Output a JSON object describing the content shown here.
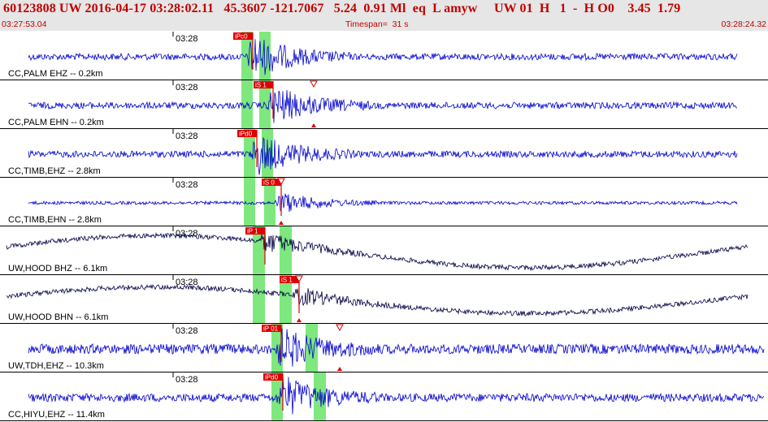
{
  "header": {
    "title": "60123808 UW 2016-04-17 03:28:02.11   45.3607 -121.7067   5.24  0.91 Ml  eq  L amyw     UW 01  H   1  -  H O0    3.45  1.79",
    "start_time": "03:27:53.04",
    "timespan": "Timespan=  31 s",
    "end_time": "03:28:24.32"
  },
  "colors": {
    "header_bg": "#e6e6e6",
    "header_text": "#c00000",
    "trace_blue": "#0000cc",
    "trace_dark": "#000044",
    "pick_red": "#dd0000",
    "window_green": "#7ee87e"
  },
  "panels": [
    {
      "time_tick": "03:28",
      "label": "CC,PALM EHZ -- 0.2km",
      "phase": "iPc0",
      "trace": "blue",
      "amp": "medium"
    },
    {
      "time_tick": "03:28",
      "label": "CC,PALM EHN -- 0.2km",
      "phase": "iS 1",
      "trace": "blue",
      "amp": "medium"
    },
    {
      "time_tick": "03:28",
      "label": "CC,TIMB,EHZ -- 2.8km",
      "phase": "iPd0",
      "trace": "blue",
      "amp": "medium"
    },
    {
      "time_tick": "03:28",
      "label": "CC,TIMB,EHN -- 2.8km",
      "phase": "iS 0",
      "trace": "blue",
      "amp": "small"
    },
    {
      "time_tick": "03:28",
      "label": "UW,HOOD BHZ -- 6.1km",
      "phase": "iP 1",
      "trace": "dark",
      "amp": "long-period"
    },
    {
      "time_tick": "03:28",
      "label": "UW,HOOD BHN -- 6.1km",
      "phase": "iS 1",
      "trace": "dark",
      "amp": "long-period"
    },
    {
      "time_tick": "03:28",
      "label": "UW,TDH,EHZ -- 10.3km",
      "phase": "iP 01",
      "trace": "blue",
      "amp": "noisy"
    },
    {
      "time_tick": "03:28",
      "label": "CC,HIYU,EHZ -- 11.4km",
      "phase": "iPd0",
      "trace": "blue",
      "amp": "medium"
    }
  ]
}
